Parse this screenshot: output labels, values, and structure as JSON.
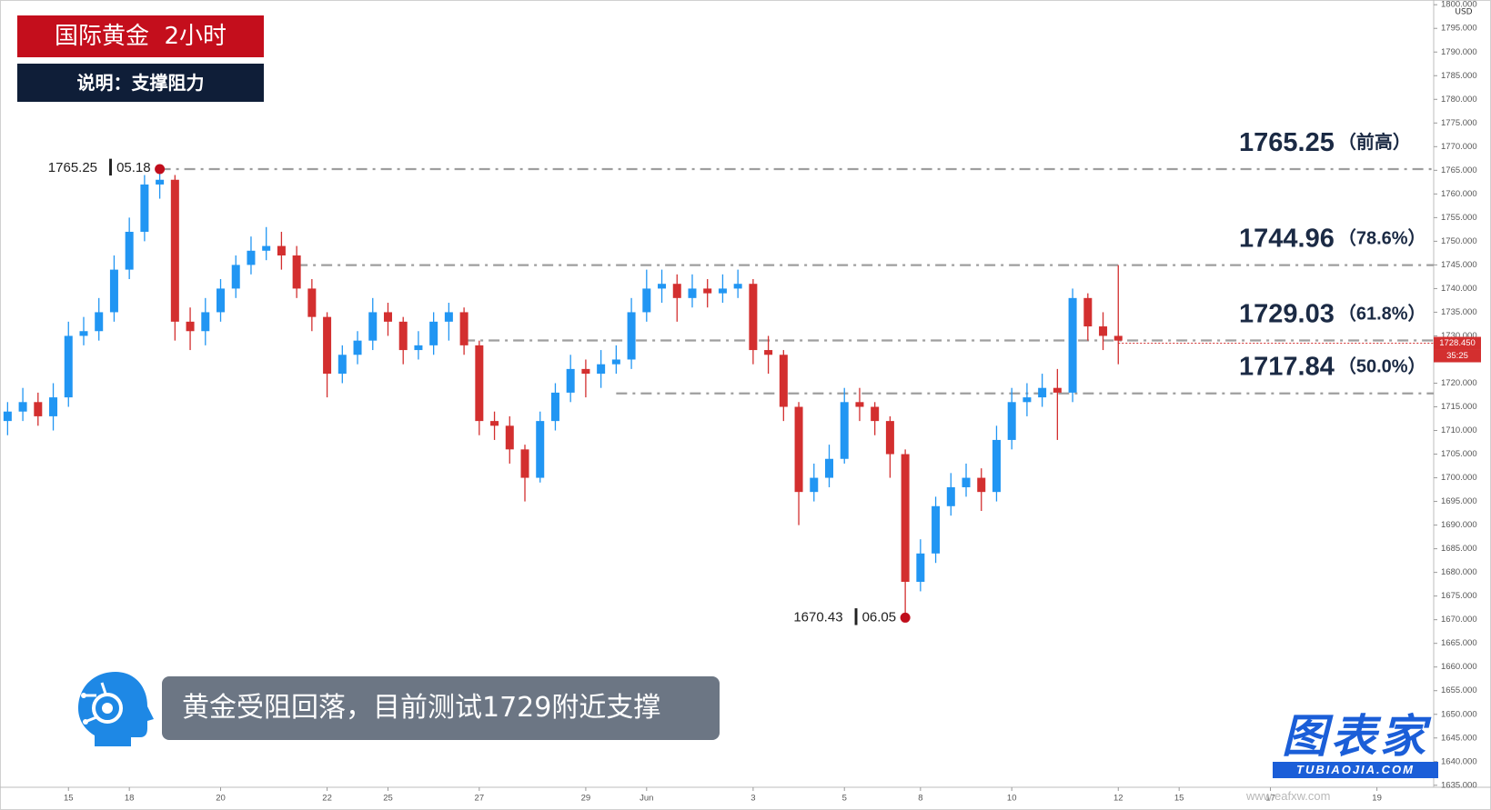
{
  "chart_data": {
    "type": "candlestick",
    "title": "国际黄金  2小时",
    "subtitle": "说明：支撑阻力",
    "annotation": "黄金受阻回落，目前测试1729附近支撑",
    "currency": "USD",
    "up_color": "#2196f3",
    "down_color": "#d32f2f",
    "level_color": "#9e9e9e",
    "grid": false,
    "categories": [
      null,
      null,
      null,
      null,
      "15",
      null,
      null,
      null,
      "18",
      null,
      null,
      null,
      null,
      null,
      "20",
      null,
      null,
      null,
      null,
      null,
      null,
      "22",
      null,
      null,
      null,
      "25",
      null,
      null,
      null,
      null,
      null,
      "27",
      null,
      null,
      null,
      null,
      null,
      null,
      "29",
      null,
      null,
      null,
      "Jun",
      null,
      null,
      null,
      null,
      null,
      null,
      "3",
      null,
      null,
      null,
      null,
      null,
      "5",
      null,
      null,
      null,
      null,
      "8",
      null,
      null,
      null,
      null,
      null,
      "10",
      null,
      null,
      null,
      null,
      null,
      null,
      "12",
      null,
      null,
      null,
      "15",
      null,
      null,
      null,
      null,
      null,
      "17",
      null,
      null,
      null,
      null,
      null,
      null,
      "19",
      null,
      null,
      null
    ],
    "open": [
      1712,
      1714,
      1716,
      1713,
      1717,
      1730,
      1731,
      1735,
      1744,
      1752,
      1762,
      1763,
      1733,
      1731,
      1735,
      1740,
      1745,
      1748,
      1749,
      1747,
      1740,
      1734,
      1722,
      1726,
      1729,
      1735,
      1733,
      1727,
      1728,
      1733,
      1735,
      1728,
      1712,
      1711,
      1706,
      1700,
      1712,
      1718,
      1723,
      1722,
      1724,
      1725,
      1735,
      1740,
      1741,
      1738,
      1740,
      1739,
      1740,
      1741,
      1727,
      1726,
      1715,
      1697,
      1700,
      1704,
      1716,
      1715,
      1712,
      1705,
      1678,
      1684,
      1694,
      1698,
      1700,
      1697,
      1708,
      1716,
      1717,
      1719,
      1718,
      1738,
      1732,
      1730,
      null,
      null,
      null,
      null,
      null,
      null,
      null,
      null,
      null,
      null,
      null,
      null,
      null,
      null,
      null,
      null,
      null,
      null,
      null,
      null
    ],
    "high": [
      1716,
      1719,
      1718,
      1720,
      1733,
      1734,
      1738,
      1747,
      1755,
      1764,
      1765.25,
      1764,
      1736,
      1738,
      1742,
      1747,
      1751,
      1753,
      1752,
      1749,
      1742,
      1735,
      1728,
      1731,
      1738,
      1737,
      1734,
      1731,
      1735,
      1737,
      1736,
      1729,
      1714,
      1713,
      1707,
      1714,
      1720,
      1726,
      1725,
      1727,
      1728,
      1738,
      1744,
      1744,
      1743,
      1743,
      1742,
      1743,
      1744,
      1742,
      1730,
      1727,
      1716,
      1703,
      1707,
      1719,
      1719,
      1716,
      1713,
      1706,
      1687,
      1696,
      1701,
      1703,
      1702,
      1711,
      1719,
      1720,
      1722,
      1723,
      1740,
      1739,
      1735,
      1744.96,
      null,
      null,
      null,
      null,
      null,
      null,
      null,
      null,
      null,
      null,
      null,
      null,
      null,
      null,
      null,
      null,
      null,
      null,
      null,
      null
    ],
    "low": [
      1709,
      1712,
      1711,
      1710,
      1715,
      1728,
      1729,
      1733,
      1742,
      1750,
      1759,
      1729,
      1727,
      1728,
      1733,
      1738,
      1743,
      1746,
      1744,
      1738,
      1731,
      1717,
      1720,
      1724,
      1727,
      1730,
      1724,
      1725,
      1726,
      1729,
      1726,
      1709,
      1708,
      1703,
      1695,
      1699,
      1710,
      1716,
      1717,
      1719,
      1722,
      1723,
      1733,
      1737,
      1733,
      1736,
      1736,
      1737,
      1738,
      1724,
      1722,
      1712,
      1690,
      1695,
      1698,
      1703,
      1712,
      1709,
      1700,
      1670.43,
      1676,
      1682,
      1692,
      1696,
      1693,
      1695,
      1706,
      1713,
      1715,
      1708,
      1716,
      1729,
      1727,
      1724,
      null,
      null,
      null,
      null,
      null,
      null,
      null,
      null,
      null,
      null,
      null,
      null,
      null,
      null,
      null,
      null,
      null,
      null,
      null,
      null
    ],
    "close": [
      1714,
      1716,
      1713,
      1717,
      1730,
      1731,
      1735,
      1744,
      1752,
      1762,
      1763,
      1733,
      1731,
      1735,
      1740,
      1745,
      1748,
      1749,
      1747,
      1740,
      1734,
      1722,
      1726,
      1729,
      1735,
      1733,
      1727,
      1728,
      1733,
      1735,
      1728,
      1712,
      1711,
      1706,
      1700,
      1712,
      1718,
      1723,
      1722,
      1724,
      1725,
      1735,
      1740,
      1741,
      1738,
      1740,
      1739,
      1740,
      1741,
      1727,
      1726,
      1715,
      1697,
      1700,
      1704,
      1716,
      1715,
      1712,
      1705,
      1678,
      1684,
      1694,
      1698,
      1700,
      1697,
      1708,
      1716,
      1717,
      1719,
      1718,
      1738,
      1732,
      1730,
      1729,
      null,
      null,
      null,
      null,
      null,
      null,
      null,
      null,
      null,
      null,
      null,
      null,
      null,
      null,
      null,
      null,
      null,
      null,
      null,
      null
    ],
    "ylim": [
      1634,
      1801
    ],
    "yticks": [
      {
        "value": 1635,
        "label": "1635.000"
      },
      {
        "value": 1640,
        "label": "1640.000"
      },
      {
        "value": 1645,
        "label": "1645.000"
      },
      {
        "value": 1650,
        "label": "1650.000"
      },
      {
        "value": 1655,
        "label": "1655.000"
      },
      {
        "value": 1660,
        "label": "1660.000"
      },
      {
        "value": 1665,
        "label": "1665.000"
      },
      {
        "value": 1670,
        "label": "1670.000"
      },
      {
        "value": 1675,
        "label": "1675.000"
      },
      {
        "value": 1680,
        "label": "1680.000"
      },
      {
        "value": 1685,
        "label": "1685.000"
      },
      {
        "value": 1690,
        "label": "1690.000"
      },
      {
        "value": 1695,
        "label": "1695.000"
      },
      {
        "value": 1700,
        "label": "1700.000"
      },
      {
        "value": 1705,
        "label": "1705.000"
      },
      {
        "value": 1710,
        "label": "1710.000"
      },
      {
        "value": 1715,
        "label": "1715.000"
      },
      {
        "value": 1720,
        "label": "1720.000"
      },
      {
        "value": 1725,
        "label": "1725.000"
      },
      {
        "value": 1730,
        "label": "1730.000"
      },
      {
        "value": 1735,
        "label": "1735.000"
      },
      {
        "value": 1740,
        "label": "1740.000"
      },
      {
        "value": 1745,
        "label": "1745.000"
      },
      {
        "value": 1750,
        "label": "1750.000"
      },
      {
        "value": 1755,
        "label": "1755.000"
      },
      {
        "value": 1760,
        "label": "1760.000"
      },
      {
        "value": 1765,
        "label": "1765.000"
      },
      {
        "value": 1770,
        "label": "1770.000"
      },
      {
        "value": 1775,
        "label": "1775.000"
      },
      {
        "value": 1780,
        "label": "1780.000"
      },
      {
        "value": 1785,
        "label": "1785.000"
      },
      {
        "value": 1790,
        "label": "1790.000"
      },
      {
        "value": 1795,
        "label": "1795.000"
      },
      {
        "value": 1800,
        "label": "1800.000"
      }
    ],
    "levels": [
      {
        "value": 1765.25,
        "note": "（前高）"
      },
      {
        "value": 1744.96,
        "note": "（78.6%）"
      },
      {
        "value": 1729.03,
        "note": "（61.8%）"
      },
      {
        "value": 1717.84,
        "note": "（50.0%）"
      }
    ],
    "high_marker": {
      "value": 1765.25,
      "date": "05.18"
    },
    "low_marker": {
      "value": 1670.43,
      "date": "06.05"
    },
    "last_price": {
      "value": 1728.45,
      "label": "1728.450"
    },
    "countdown": "35:25",
    "logo_text": "图表家",
    "logo_url": "TUBIAOJIA.COM",
    "watermark": "www.eafxw.com"
  }
}
